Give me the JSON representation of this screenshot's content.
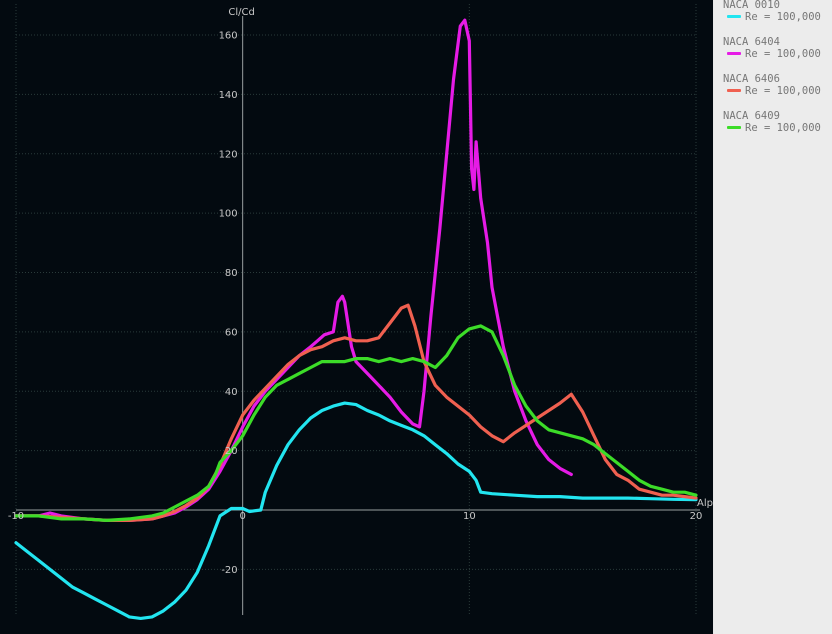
{
  "chart_data": {
    "type": "line",
    "xlabel": "Alpha",
    "ylabel": "Cl/Cd",
    "xlim": [
      -10,
      20
    ],
    "ylim": [
      -35,
      165
    ],
    "x_ticks": [
      -10,
      0,
      10,
      20
    ],
    "y_ticks": [
      -20,
      20,
      40,
      60,
      80,
      100,
      120,
      140,
      160
    ],
    "grid": true,
    "legend_position": "right",
    "series": [
      {
        "name": "NACA 0010",
        "label": "Re = 100,000",
        "color": "#22e5f0",
        "points": [
          [
            -10,
            -11
          ],
          [
            -9.5,
            -14
          ],
          [
            -9,
            -17
          ],
          [
            -8.5,
            -20
          ],
          [
            -8,
            -23
          ],
          [
            -7.5,
            -26
          ],
          [
            -7,
            -28
          ],
          [
            -6.5,
            -30
          ],
          [
            -6,
            -32
          ],
          [
            -5.5,
            -34
          ],
          [
            -5,
            -36
          ],
          [
            -4.5,
            -36.5
          ],
          [
            -4,
            -36
          ],
          [
            -3.5,
            -34
          ],
          [
            -3,
            -31
          ],
          [
            -2.5,
            -27
          ],
          [
            -2,
            -21
          ],
          [
            -1.5,
            -12
          ],
          [
            -1,
            -2
          ],
          [
            -0.5,
            0.5
          ],
          [
            0,
            0.5
          ],
          [
            0.3,
            -0.5
          ],
          [
            0.8,
            0
          ],
          [
            1,
            6
          ],
          [
            1.5,
            15
          ],
          [
            2,
            22
          ],
          [
            2.5,
            27
          ],
          [
            3,
            31
          ],
          [
            3.5,
            33.5
          ],
          [
            4,
            35
          ],
          [
            4.5,
            36
          ],
          [
            5,
            35.5
          ],
          [
            5.5,
            33.5
          ],
          [
            6,
            32
          ],
          [
            6.5,
            30
          ],
          [
            7,
            28.5
          ],
          [
            7.5,
            27
          ],
          [
            8,
            25
          ],
          [
            8.5,
            22
          ],
          [
            9,
            19
          ],
          [
            9.5,
            15.5
          ],
          [
            10,
            13
          ],
          [
            10.3,
            10
          ],
          [
            10.5,
            6
          ],
          [
            11,
            5.5
          ],
          [
            12,
            5
          ],
          [
            13,
            4.5
          ],
          [
            14,
            4.5
          ],
          [
            15,
            4
          ],
          [
            16,
            4
          ],
          [
            17,
            4
          ],
          [
            18,
            3.8
          ],
          [
            19,
            3.6
          ],
          [
            20,
            3.5
          ]
        ]
      },
      {
        "name": "NACA 6404",
        "label": "Re = 100,000",
        "color": "#e61be6",
        "points": [
          [
            -10,
            -2
          ],
          [
            -9,
            -2
          ],
          [
            -8.5,
            -1
          ],
          [
            -8,
            -2
          ],
          [
            -7,
            -3
          ],
          [
            -6,
            -3.5
          ],
          [
            -5,
            -3.5
          ],
          [
            -4,
            -3
          ],
          [
            -3.5,
            -2
          ],
          [
            -3,
            -1
          ],
          [
            -2.5,
            1
          ],
          [
            -2,
            3.5
          ],
          [
            -1.5,
            7
          ],
          [
            -1,
            13
          ],
          [
            -0.5,
            20
          ],
          [
            0,
            28
          ],
          [
            0.5,
            35
          ],
          [
            1,
            40
          ],
          [
            1.5,
            44
          ],
          [
            2,
            48
          ],
          [
            2.5,
            52
          ],
          [
            3,
            55
          ],
          [
            3.3,
            57
          ],
          [
            3.6,
            59
          ],
          [
            4,
            60
          ],
          [
            4.2,
            70
          ],
          [
            4.4,
            72
          ],
          [
            4.5,
            70
          ],
          [
            4.8,
            55
          ],
          [
            5,
            50
          ],
          [
            5.5,
            46
          ],
          [
            6,
            42
          ],
          [
            6.5,
            38
          ],
          [
            7,
            33
          ],
          [
            7.5,
            29
          ],
          [
            7.8,
            28
          ],
          [
            8,
            40
          ],
          [
            8.3,
            65
          ],
          [
            8.7,
            95
          ],
          [
            9,
            120
          ],
          [
            9.3,
            145
          ],
          [
            9.6,
            163
          ],
          [
            9.8,
            165
          ],
          [
            10,
            158
          ],
          [
            10.1,
            115
          ],
          [
            10.2,
            108
          ],
          [
            10.3,
            124
          ],
          [
            10.5,
            105
          ],
          [
            10.8,
            90
          ],
          [
            11,
            75
          ],
          [
            11.5,
            55
          ],
          [
            12,
            40
          ],
          [
            12.5,
            30
          ],
          [
            13,
            22
          ],
          [
            13.5,
            17
          ],
          [
            14,
            14
          ],
          [
            14.5,
            12
          ]
        ]
      },
      {
        "name": "NACA 6406",
        "label": "Re = 100,000",
        "color": "#f06050",
        "points": [
          [
            -10,
            -2
          ],
          [
            -9,
            -2
          ],
          [
            -8,
            -2.5
          ],
          [
            -7,
            -3
          ],
          [
            -6,
            -3.5
          ],
          [
            -5,
            -3.5
          ],
          [
            -4,
            -3
          ],
          [
            -3.5,
            -2
          ],
          [
            -3,
            -0.5
          ],
          [
            -2.5,
            1.5
          ],
          [
            -2,
            4
          ],
          [
            -1.5,
            8
          ],
          [
            -1,
            15
          ],
          [
            -0.5,
            24
          ],
          [
            0,
            32
          ],
          [
            0.5,
            37
          ],
          [
            1,
            41
          ],
          [
            1.5,
            45
          ],
          [
            2,
            49
          ],
          [
            2.5,
            52
          ],
          [
            3,
            54
          ],
          [
            3.5,
            55
          ],
          [
            4,
            57
          ],
          [
            4.5,
            58
          ],
          [
            5,
            57
          ],
          [
            5.5,
            57
          ],
          [
            6,
            58
          ],
          [
            6.5,
            63
          ],
          [
            7,
            68
          ],
          [
            7.3,
            69
          ],
          [
            7.6,
            62
          ],
          [
            8,
            50
          ],
          [
            8.5,
            42
          ],
          [
            9,
            38
          ],
          [
            9.5,
            35
          ],
          [
            10,
            32
          ],
          [
            10.5,
            28
          ],
          [
            11,
            25
          ],
          [
            11.5,
            23
          ],
          [
            12,
            26
          ],
          [
            13,
            31
          ],
          [
            14,
            36
          ],
          [
            14.5,
            39
          ],
          [
            15,
            33
          ],
          [
            15.5,
            25
          ],
          [
            16,
            17
          ],
          [
            16.5,
            12
          ],
          [
            17,
            10
          ],
          [
            17.5,
            7
          ],
          [
            18,
            6
          ],
          [
            18.5,
            5
          ],
          [
            19,
            5
          ],
          [
            19.5,
            4.5
          ],
          [
            20,
            4
          ]
        ]
      },
      {
        "name": "NACA 6409",
        "label": "Re = 100,000",
        "color": "#3cdc28",
        "points": [
          [
            -10,
            -2
          ],
          [
            -9,
            -2
          ],
          [
            -8,
            -3
          ],
          [
            -7,
            -3
          ],
          [
            -6,
            -3.5
          ],
          [
            -5,
            -3
          ],
          [
            -4,
            -2
          ],
          [
            -3.5,
            -1
          ],
          [
            -3,
            1
          ],
          [
            -2.5,
            3
          ],
          [
            -2,
            5
          ],
          [
            -1.5,
            8
          ],
          [
            -1.2,
            12
          ],
          [
            -1,
            16
          ],
          [
            -0.5,
            20
          ],
          [
            0,
            25
          ],
          [
            0.5,
            32
          ],
          [
            1,
            38
          ],
          [
            1.5,
            42
          ],
          [
            2,
            44
          ],
          [
            2.5,
            46
          ],
          [
            3,
            48
          ],
          [
            3.5,
            50
          ],
          [
            4,
            50
          ],
          [
            4.5,
            50
          ],
          [
            5,
            51
          ],
          [
            5.5,
            51
          ],
          [
            6,
            50
          ],
          [
            6.5,
            51
          ],
          [
            7,
            50
          ],
          [
            7.5,
            51
          ],
          [
            8,
            50
          ],
          [
            8.5,
            48
          ],
          [
            9,
            52
          ],
          [
            9.5,
            58
          ],
          [
            10,
            61
          ],
          [
            10.5,
            62
          ],
          [
            11,
            60
          ],
          [
            11.5,
            52
          ],
          [
            12,
            42
          ],
          [
            12.5,
            35
          ],
          [
            13,
            30
          ],
          [
            13.5,
            27
          ],
          [
            14,
            26
          ],
          [
            14.5,
            25
          ],
          [
            15,
            24
          ],
          [
            15.5,
            22
          ],
          [
            16,
            19
          ],
          [
            16.5,
            16
          ],
          [
            17,
            13
          ],
          [
            17.5,
            10
          ],
          [
            18,
            8
          ],
          [
            18.5,
            7
          ],
          [
            19,
            6
          ],
          [
            19.5,
            6
          ],
          [
            20,
            5
          ]
        ]
      }
    ]
  }
}
